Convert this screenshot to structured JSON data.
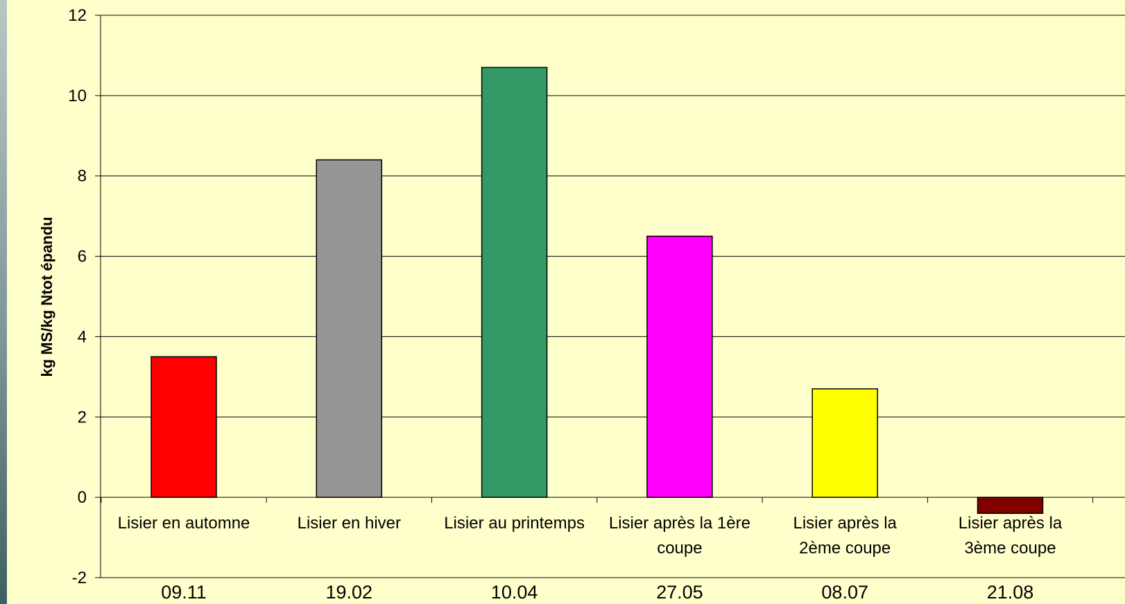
{
  "chart_data": {
    "type": "bar",
    "title": "",
    "ylabel": "kg MS/kg Ntot épandu",
    "xlabel": "",
    "ylim": [
      -2,
      12
    ],
    "yticks": [
      -2,
      0,
      2,
      4,
      6,
      8,
      10,
      12
    ],
    "grid": "horizontal",
    "categories": [
      [
        "Lisier en automne"
      ],
      [
        "Lisier en hiver"
      ],
      [
        "Lisier au printemps"
      ],
      [
        "Lisier après la 1ère",
        "coupe"
      ],
      [
        "Lisier après la",
        "2ème coupe"
      ],
      [
        "Lisier après la",
        "3ème coupe"
      ]
    ],
    "dates": [
      "09.11",
      "19.02",
      "10.04",
      "27.05",
      "08.07",
      "21.08"
    ],
    "values": [
      3.5,
      8.4,
      10.7,
      6.5,
      2.7,
      -0.4
    ],
    "colors": [
      "#ff0000",
      "#969696",
      "#339966",
      "#ff00ff",
      "#ffff00",
      "#800000"
    ]
  }
}
